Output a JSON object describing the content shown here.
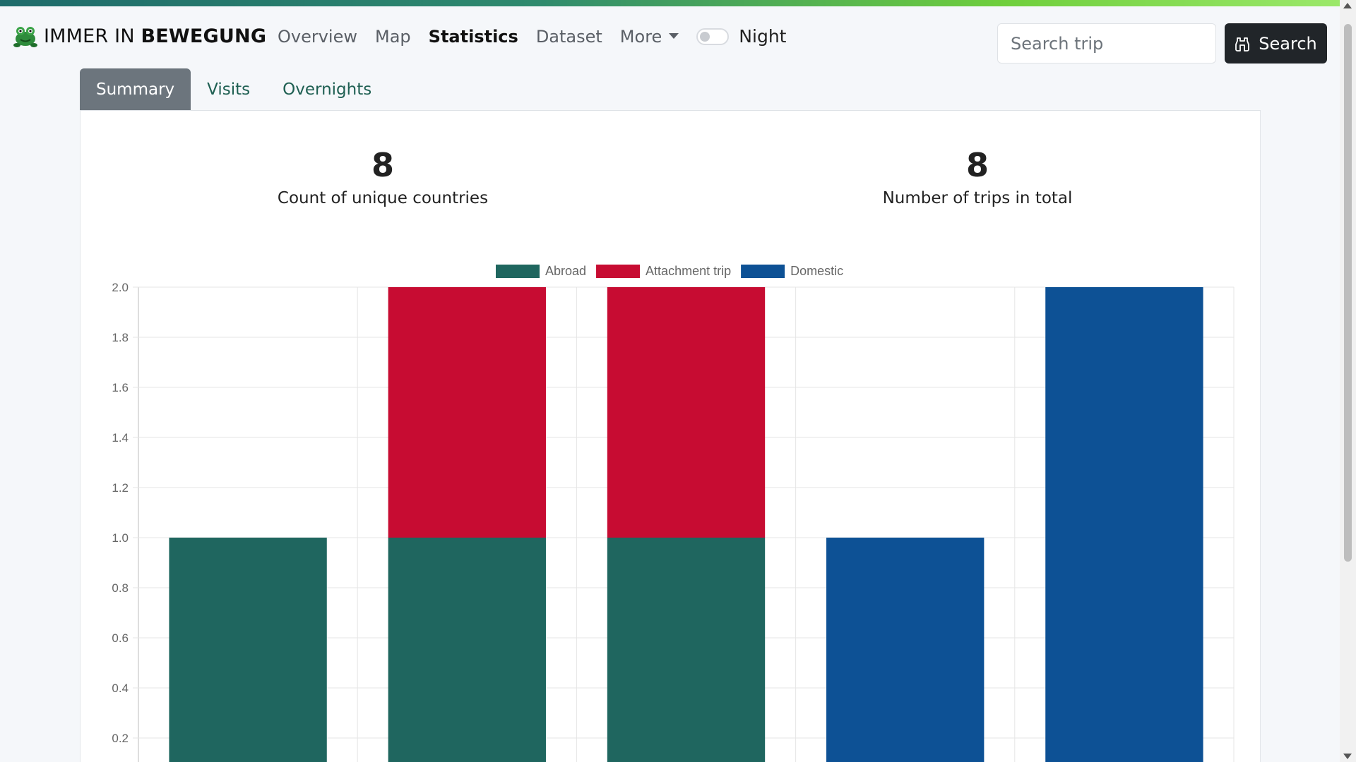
{
  "brand": {
    "prefix": "IMMER IN ",
    "bold": "BEWEGUNG"
  },
  "nav": {
    "items": [
      {
        "label": "Overview",
        "active": false
      },
      {
        "label": "Map",
        "active": false
      },
      {
        "label": "Statistics",
        "active": true
      },
      {
        "label": "Dataset",
        "active": false
      },
      {
        "label": "More",
        "active": false,
        "dropdown": true
      }
    ],
    "night_label": "Night",
    "night_enabled": false
  },
  "search": {
    "placeholder": "Search trip",
    "button_label": "Search"
  },
  "tabs": [
    {
      "label": "Summary",
      "active": true
    },
    {
      "label": "Visits",
      "active": false
    },
    {
      "label": "Overnights",
      "active": false
    }
  ],
  "kpis": [
    {
      "value": "8",
      "label": "Count of unique countries"
    },
    {
      "value": "8",
      "label": "Number of trips in total"
    }
  ],
  "chart_data": {
    "type": "bar",
    "stacked": true,
    "categories": [
      "",
      "",
      "",
      "",
      ""
    ],
    "series": [
      {
        "name": "Abroad",
        "color": "#1f665f",
        "values": [
          1,
          1,
          1,
          0,
          0
        ]
      },
      {
        "name": "Attachment trip",
        "color": "#c70c32",
        "values": [
          0,
          1,
          1,
          0,
          0
        ]
      },
      {
        "name": "Domestic",
        "color": "#0d5195",
        "values": [
          0,
          0,
          0,
          1,
          2
        ]
      }
    ],
    "yticks": [
      "2.0",
      "1.8",
      "1.6",
      "1.4",
      "1.2",
      "1.0",
      "0.8",
      "0.6",
      "0.4",
      "0.2"
    ],
    "ylim": [
      0,
      2.0
    ],
    "grid": true,
    "legend_position": "top"
  }
}
